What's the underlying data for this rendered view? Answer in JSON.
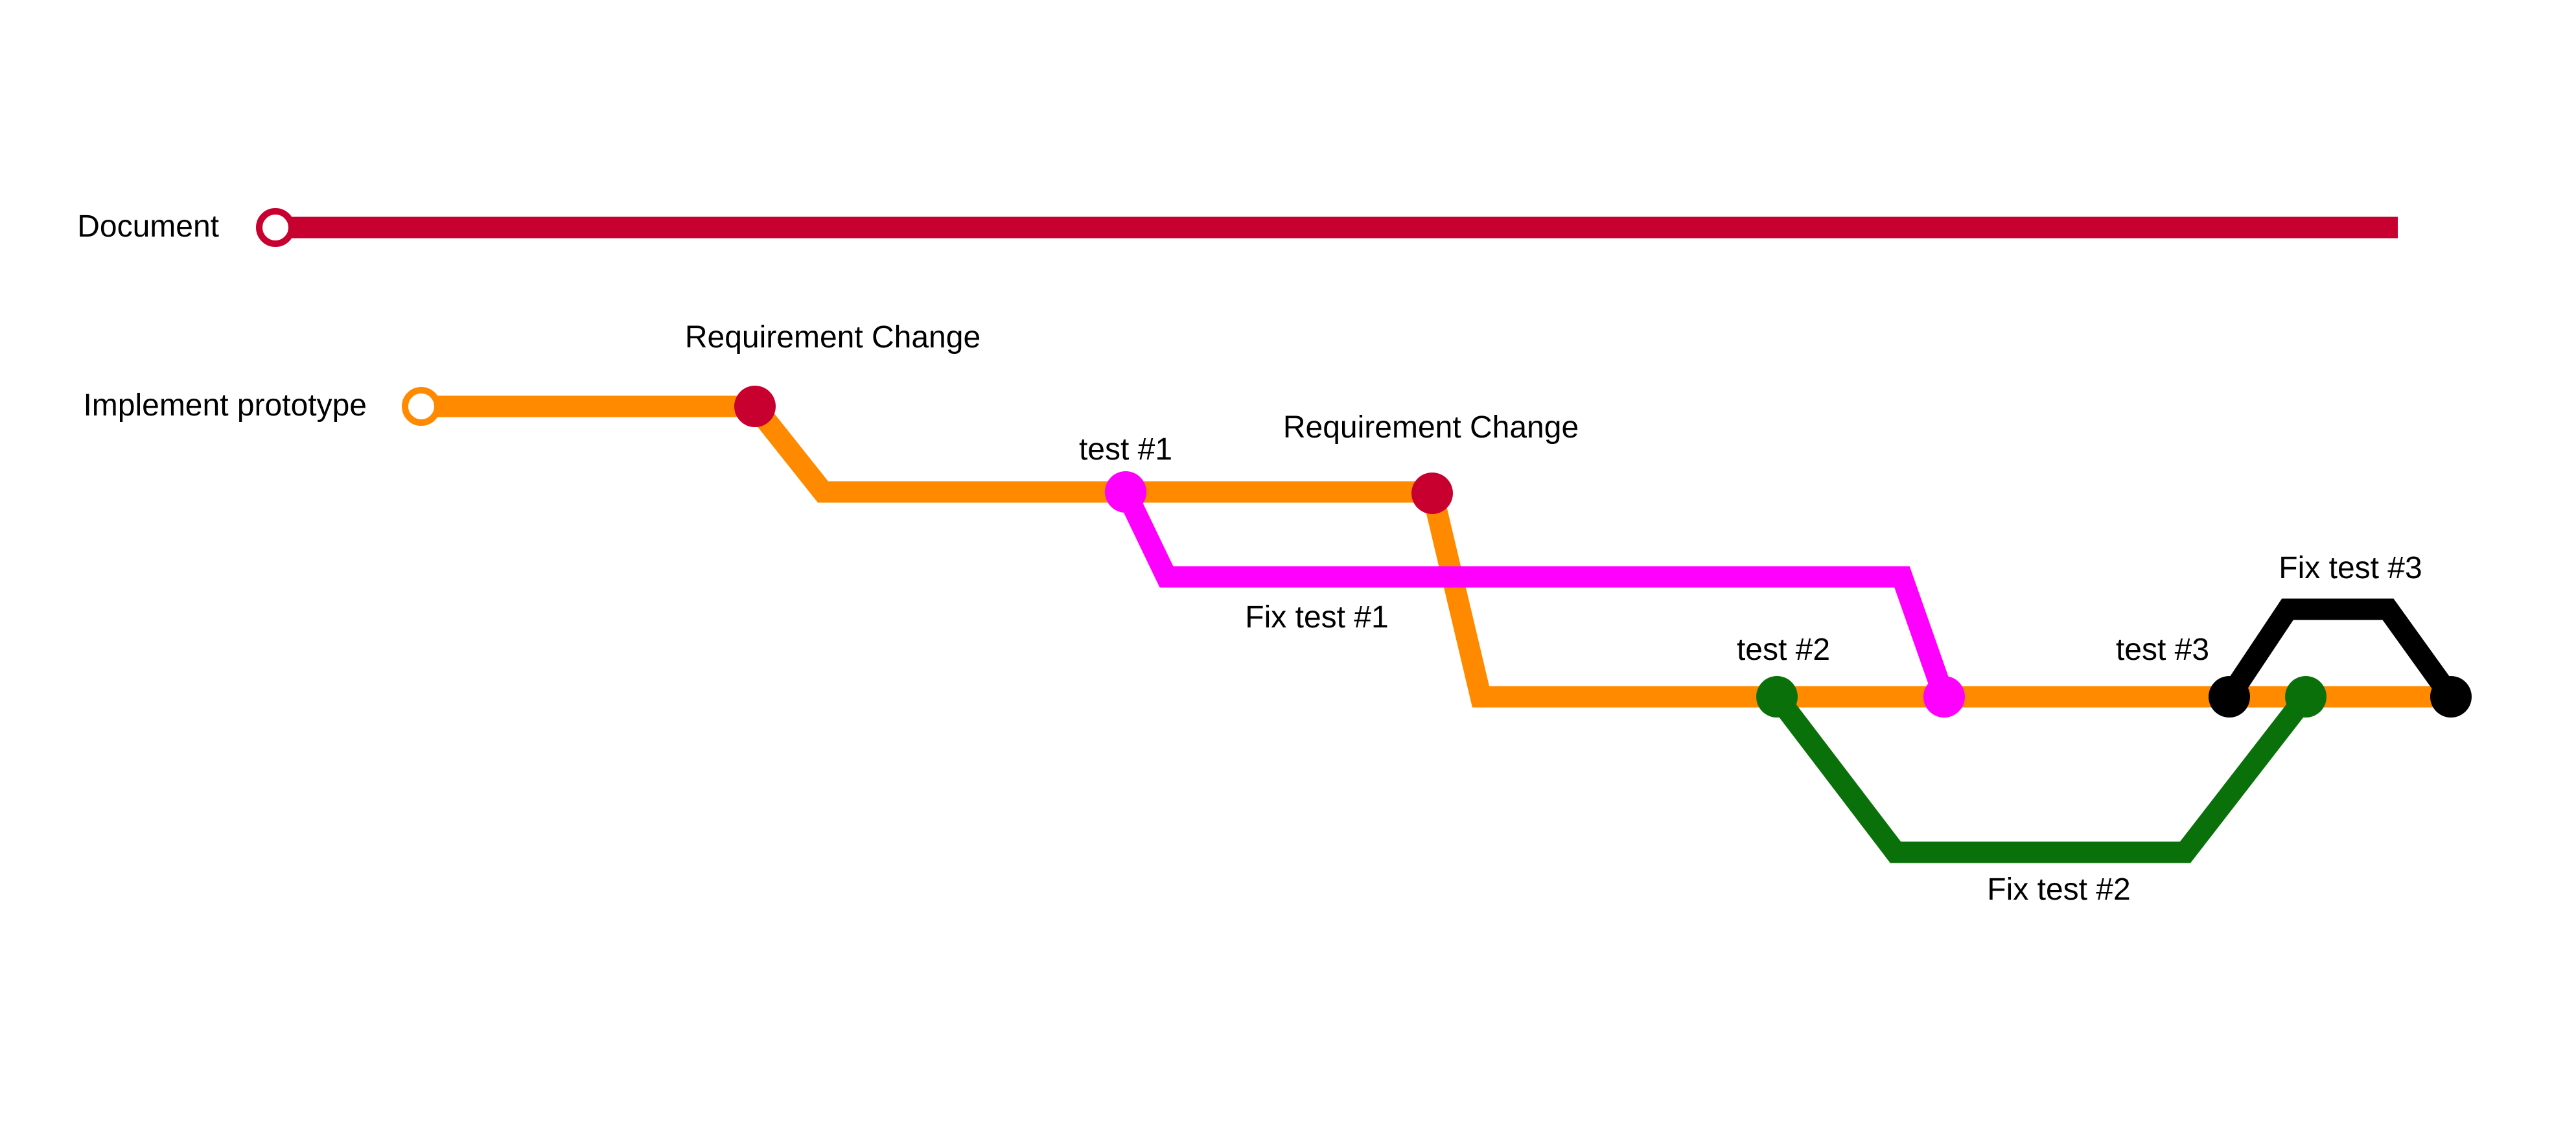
{
  "colors": {
    "document": "#c8002f",
    "prototype": "#ff8a00",
    "fix_test_1": "#ff00ff",
    "fix_test_2": "#0a700a",
    "fix_test_3": "#000000"
  },
  "lines": {
    "document": {
      "label": "Document"
    },
    "prototype": {
      "label": "Implement prototype"
    }
  },
  "annotations": {
    "requirement_change_1": "Requirement Change",
    "requirement_change_2": "Requirement Change",
    "test_1": "test #1",
    "fix_test_1": "Fix test #1",
    "test_2": "test #2",
    "fix_test_2": "Fix test #2",
    "test_3": "test #3",
    "fix_test_3": "Fix test #3"
  }
}
